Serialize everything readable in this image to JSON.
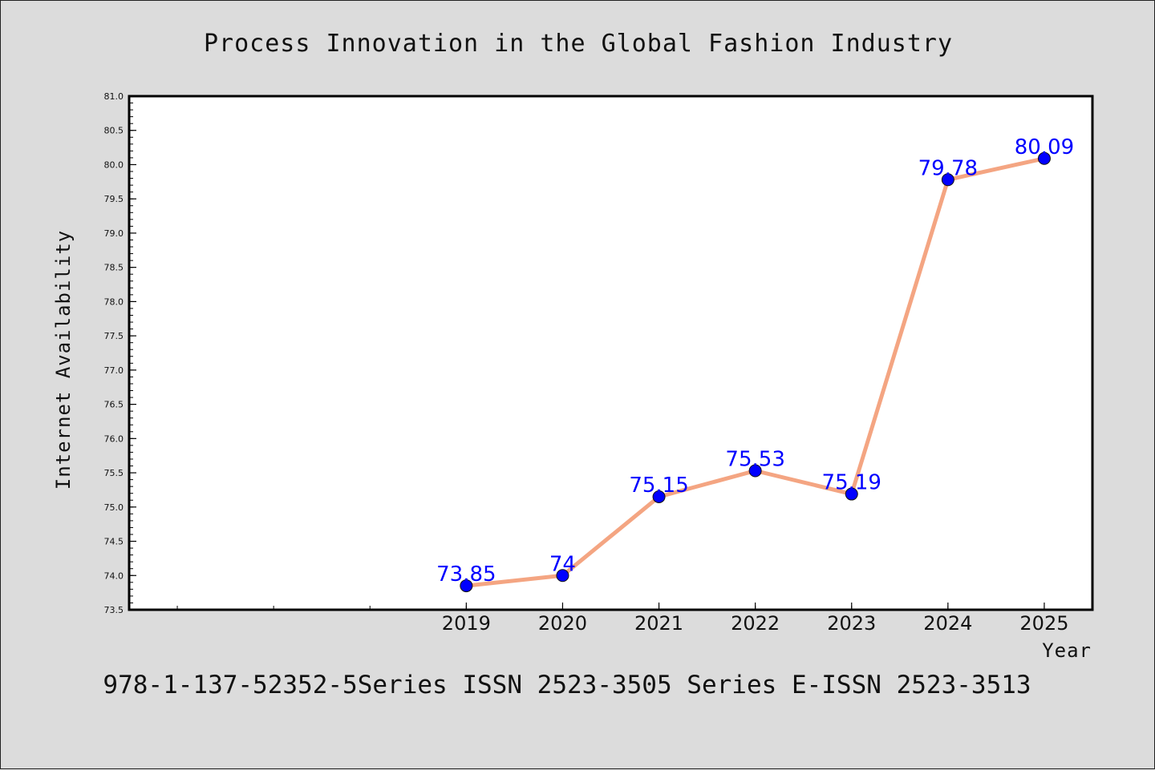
{
  "title": "Process Innovation in the Global Fashion Industry",
  "footer": "978-1-137-52352-5Series ISSN 2523-3505 Series E-ISSN 2523-3513",
  "chart_data": {
    "type": "line",
    "title": "Process Innovation in the Global Fashion Industry",
    "xlabel": "Year",
    "ylabel": "Internet Availability",
    "x": [
      2019,
      2020,
      2021,
      2022,
      2023,
      2024,
      2025
    ],
    "xlim": [
      2015.5,
      2025.5
    ],
    "y": [
      73.85,
      74,
      75.15,
      75.53,
      75.19,
      79.78,
      80.09
    ],
    "data_labels": [
      "73.85",
      "74",
      "75.15",
      "75.53",
      "75.19",
      "79.78",
      "80.09"
    ],
    "ylim": [
      73.5,
      81.0
    ],
    "yticks": [
      "73.5",
      "74.0",
      "74.5",
      "75.0",
      "75.5",
      "76.0",
      "76.5",
      "77.0",
      "77.5",
      "78.0",
      "78.5",
      "79.0",
      "79.5",
      "80.0",
      "80.5",
      "81.0"
    ],
    "xticks": [
      "2019",
      "2020",
      "2021",
      "2022",
      "2023",
      "2024",
      "2025"
    ],
    "grid": false,
    "line_color": "#f4a582",
    "marker_color": "#0000ff",
    "label_color": "#0000ff"
  }
}
